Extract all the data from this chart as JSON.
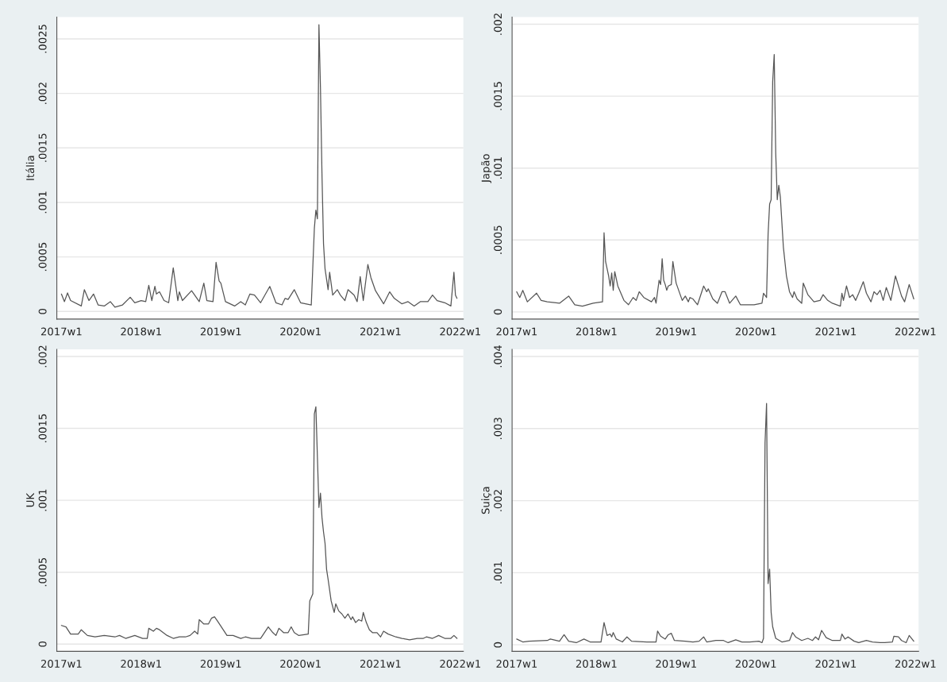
{
  "chart_data": [
    {
      "type": "line",
      "ylabel": "Itália",
      "grid": "y",
      "xlim": [
        "2016-12-11",
        "2022-01-15"
      ],
      "ylim": [
        -7e-05,
        0.0027
      ],
      "xticks": [
        {
          "value": "2017-01-01",
          "label": "2017w1"
        },
        {
          "value": "2018-01-01",
          "label": "2018w1"
        },
        {
          "value": "2019-01-01",
          "label": "2019w1"
        },
        {
          "value": "2020-01-01",
          "label": "2020w1"
        },
        {
          "value": "2021-01-01",
          "label": "2021w1"
        },
        {
          "value": "2022-01-01",
          "label": "2022w1"
        }
      ],
      "yticks": [
        0,
        {
          "value": 0.0005,
          "label": ".0005"
        },
        {
          "value": 0.001,
          "label": ".001"
        },
        {
          "value": 0.0015,
          "label": ".0015"
        },
        {
          "value": 0.002,
          "label": ".002"
        },
        {
          "value": 0.0025,
          "label": ".0025"
        }
      ],
      "series": [
        {
          "color": "#555555",
          "x": [
            "2017-01-01",
            "2017-01-15",
            "2017-01-29",
            "2017-02-12",
            "2017-04-02",
            "2017-04-16",
            "2017-05-07",
            "2017-05-28",
            "2017-06-18",
            "2017-07-16",
            "2017-08-13",
            "2017-09-03",
            "2017-10-08",
            "2017-11-12",
            "2017-12-03",
            "2018-01-01",
            "2018-01-22",
            "2018-02-05",
            "2018-02-19",
            "2018-03-05",
            "2018-03-12",
            "2018-03-26",
            "2018-04-16",
            "2018-05-07",
            "2018-05-28",
            "2018-06-18",
            "2018-06-25",
            "2018-07-09",
            "2018-08-20",
            "2018-09-24",
            "2018-10-15",
            "2018-10-29",
            "2018-11-26",
            "2018-12-10",
            "2018-12-24",
            "2019-01-01",
            "2019-01-22",
            "2019-03-05",
            "2019-04-02",
            "2019-04-23",
            "2019-05-14",
            "2019-06-04",
            "2019-07-02",
            "2019-08-13",
            "2019-09-10",
            "2019-10-08",
            "2019-10-22",
            "2019-11-05",
            "2019-12-03",
            "2020-01-01",
            "2020-02-19",
            "2020-03-04",
            "2020-03-11",
            "2020-03-18",
            "2020-03-25",
            "2020-04-01",
            "2020-04-08",
            "2020-04-15",
            "2020-04-22",
            "2020-05-06",
            "2020-05-13",
            "2020-05-27",
            "2020-06-17",
            "2020-07-01",
            "2020-07-22",
            "2020-08-05",
            "2020-09-02",
            "2020-09-16",
            "2020-09-30",
            "2020-10-14",
            "2020-11-04",
            "2020-11-18",
            "2020-12-09",
            "2021-01-15",
            "2021-02-12",
            "2021-03-05",
            "2021-04-09",
            "2021-05-07",
            "2021-06-04",
            "2021-07-02",
            "2021-08-06",
            "2021-08-27",
            "2021-09-17",
            "2021-10-22",
            "2021-11-19",
            "2021-12-03",
            "2021-12-10",
            "2021-12-17"
          ],
          "values": [
            0.00016,
            9e-05,
            0.00017,
            0.0001,
            5e-05,
            0.0002,
            0.0001,
            0.00016,
            6e-05,
            5e-05,
            9e-05,
            4e-05,
            6e-05,
            0.00013,
            8e-05,
            0.0001,
            9e-05,
            0.00024,
            0.0001,
            0.00023,
            0.00016,
            0.00018,
            0.0001,
            8e-05,
            0.0004,
            0.0001,
            0.00018,
            0.0001,
            0.00019,
            9e-05,
            0.00026,
            0.0001,
            9e-05,
            0.00045,
            0.00028,
            0.00026,
            9e-05,
            5e-05,
            9e-05,
            6e-05,
            0.00016,
            0.00015,
            8e-05,
            0.00023,
            8e-05,
            6e-05,
            0.00012,
            0.00011,
            0.0002,
            8e-05,
            6e-05,
            0.00076,
            0.00093,
            0.00085,
            0.00263,
            0.00205,
            0.00125,
            0.00062,
            0.00039,
            0.0002,
            0.00036,
            0.00015,
            0.0002,
            0.00015,
            0.0001,
            0.0002,
            0.00015,
            9e-05,
            0.00032,
            0.0001,
            0.00043,
            0.00031,
            0.00019,
            7e-05,
            0.00018,
            0.00012,
            7e-05,
            9e-05,
            5e-05,
            9e-05,
            9e-05,
            0.00015,
            0.0001,
            8e-05,
            5e-05,
            0.00036,
            0.00015,
            0.00012
          ]
        }
      ]
    },
    {
      "type": "line",
      "ylabel": "Japão",
      "grid": "y",
      "xlim": [
        "2016-12-11",
        "2022-01-15"
      ],
      "ylim": [
        -5e-05,
        0.00205
      ],
      "xticks": [
        {
          "value": "2017-01-01",
          "label": "2017w1"
        },
        {
          "value": "2018-01-01",
          "label": "2018w1"
        },
        {
          "value": "2019-01-01",
          "label": "2019w1"
        },
        {
          "value": "2020-01-01",
          "label": "2020w1"
        },
        {
          "value": "2021-01-01",
          "label": "2021w1"
        },
        {
          "value": "2022-01-01",
          "label": "2022w1"
        }
      ],
      "yticks": [
        0,
        {
          "value": 0.0005,
          "label": ".0005"
        },
        {
          "value": 0.001,
          "label": ".001"
        },
        {
          "value": 0.0015,
          "label": ".0015"
        },
        {
          "value": 0.002,
          "label": ".002"
        }
      ],
      "series": [
        {
          "color": "#555555",
          "x": [
            "2017-01-01",
            "2017-01-15",
            "2017-01-29",
            "2017-02-19",
            "2017-04-02",
            "2017-04-23",
            "2017-05-21",
            "2017-07-16",
            "2017-08-27",
            "2017-09-24",
            "2017-10-29",
            "2017-12-17",
            "2018-01-29",
            "2018-02-05",
            "2018-02-12",
            "2018-02-26",
            "2018-03-05",
            "2018-03-12",
            "2018-03-19",
            "2018-03-26",
            "2018-04-09",
            "2018-05-07",
            "2018-05-28",
            "2018-06-18",
            "2018-07-02",
            "2018-07-16",
            "2018-08-06",
            "2018-09-10",
            "2018-09-24",
            "2018-10-01",
            "2018-10-15",
            "2018-10-22",
            "2018-10-29",
            "2018-11-05",
            "2018-11-12",
            "2018-11-19",
            "2018-11-26",
            "2018-12-10",
            "2018-12-17",
            "2019-01-01",
            "2019-01-29",
            "2019-02-12",
            "2019-02-26",
            "2019-03-05",
            "2019-03-19",
            "2019-04-09",
            "2019-05-07",
            "2019-05-21",
            "2019-05-28",
            "2019-06-18",
            "2019-07-09",
            "2019-07-30",
            "2019-08-13",
            "2019-09-03",
            "2019-10-01",
            "2019-10-22",
            "2019-11-19",
            "2019-12-24",
            "2020-01-29",
            "2020-02-05",
            "2020-02-19",
            "2020-02-26",
            "2020-03-04",
            "2020-03-11",
            "2020-03-18",
            "2020-03-25",
            "2020-04-01",
            "2020-04-08",
            "2020-04-15",
            "2020-04-22",
            "2020-05-06",
            "2020-05-20",
            "2020-06-03",
            "2020-06-17",
            "2020-06-24",
            "2020-07-08",
            "2020-07-29",
            "2020-08-05",
            "2020-08-26",
            "2020-09-23",
            "2020-10-21",
            "2020-11-04",
            "2020-11-25",
            "2020-12-16",
            "2021-01-22",
            "2021-01-29",
            "2021-02-05",
            "2021-02-19",
            "2021-03-05",
            "2021-03-19",
            "2021-04-02",
            "2021-04-16",
            "2021-05-07",
            "2021-05-21",
            "2021-06-11",
            "2021-06-25",
            "2021-07-09",
            "2021-07-23",
            "2021-08-06",
            "2021-08-20",
            "2021-09-10",
            "2021-10-01",
            "2021-10-29",
            "2021-11-12",
            "2021-12-03",
            "2021-12-24"
          ],
          "values": [
            0.00014,
            0.0001,
            0.00015,
            7e-05,
            0.00013,
            8e-05,
            7e-05,
            6e-05,
            0.00011,
            5e-05,
            4e-05,
            6e-05,
            7e-05,
            0.00055,
            0.00035,
            0.00025,
            0.00018,
            0.00027,
            0.00015,
            0.00028,
            0.00018,
            8e-05,
            5e-05,
            0.0001,
            8e-05,
            0.00014,
            0.0001,
            7e-05,
            0.0001,
            6e-05,
            0.00022,
            0.00019,
            0.00037,
            0.00022,
            0.00019,
            0.00015,
            0.00018,
            0.00019,
            0.00035,
            0.0002,
            8e-05,
            0.00011,
            7e-05,
            0.0001,
            9e-05,
            5e-05,
            0.00018,
            0.00014,
            0.00016,
            9e-05,
            6e-05,
            0.00014,
            0.00014,
            6e-05,
            0.00011,
            5e-05,
            5e-05,
            5e-05,
            6e-05,
            0.00013,
            0.0001,
            0.00054,
            0.00075,
            0.00078,
            0.0016,
            0.00179,
            0.0011,
            0.00078,
            0.00088,
            0.0008,
            0.00045,
            0.00025,
            0.00014,
            0.0001,
            0.00014,
            9e-05,
            6e-05,
            0.0002,
            0.00012,
            7e-05,
            8e-05,
            0.00012,
            8e-05,
            6e-05,
            4e-05,
            0.00013,
            8e-05,
            0.00018,
            0.0001,
            0.00012,
            8e-05,
            0.00013,
            0.00021,
            0.00013,
            7e-05,
            0.00014,
            0.00012,
            0.00015,
            8e-05,
            0.00017,
            8e-05,
            0.00025,
            0.00011,
            7e-05,
            0.00019,
            9e-05
          ]
        }
      ]
    },
    {
      "type": "line",
      "ylabel": "UK",
      "grid": "y",
      "xlim": [
        "2016-12-11",
        "2022-01-15"
      ],
      "ylim": [
        -5e-05,
        0.00205
      ],
      "xticks": [
        {
          "value": "2017-01-01",
          "label": "2017w1"
        },
        {
          "value": "2018-01-01",
          "label": "2018w1"
        },
        {
          "value": "2019-01-01",
          "label": "2019w1"
        },
        {
          "value": "2020-01-01",
          "label": "2020w1"
        },
        {
          "value": "2021-01-01",
          "label": "2021w1"
        },
        {
          "value": "2022-01-01",
          "label": "2022w1"
        }
      ],
      "yticks": [
        0,
        {
          "value": 0.0005,
          "label": ".0005"
        },
        {
          "value": 0.001,
          "label": ".001"
        },
        {
          "value": 0.0015,
          "label": ".0015"
        },
        {
          "value": 0.002,
          "label": ".002"
        }
      ],
      "series": [
        {
          "color": "#555555",
          "x": [
            "2017-01-01",
            "2017-01-22",
            "2017-02-12",
            "2017-03-19",
            "2017-04-02",
            "2017-04-30",
            "2017-06-04",
            "2017-07-16",
            "2017-09-03",
            "2017-09-24",
            "2017-10-22",
            "2017-12-03",
            "2018-01-08",
            "2018-01-29",
            "2018-02-05",
            "2018-02-26",
            "2018-03-12",
            "2018-03-26",
            "2018-04-30",
            "2018-05-28",
            "2018-06-25",
            "2018-07-23",
            "2018-08-13",
            "2018-09-03",
            "2018-09-17",
            "2018-09-24",
            "2018-10-15",
            "2018-11-05",
            "2018-11-19",
            "2018-12-03",
            "2018-12-17",
            "2019-01-29",
            "2019-02-26",
            "2019-04-02",
            "2019-04-23",
            "2019-05-21",
            "2019-07-02",
            "2019-08-06",
            "2019-08-27",
            "2019-09-10",
            "2019-09-24",
            "2019-10-15",
            "2019-11-05",
            "2019-11-19",
            "2019-12-03",
            "2019-12-24",
            "2020-02-05",
            "2020-02-12",
            "2020-02-26",
            "2020-03-04",
            "2020-03-11",
            "2020-03-18",
            "2020-03-25",
            "2020-04-01",
            "2020-04-08",
            "2020-04-15",
            "2020-04-22",
            "2020-04-29",
            "2020-05-06",
            "2020-05-20",
            "2020-06-03",
            "2020-06-10",
            "2020-06-24",
            "2020-07-08",
            "2020-07-22",
            "2020-08-05",
            "2020-08-19",
            "2020-08-26",
            "2020-09-09",
            "2020-09-23",
            "2020-10-07",
            "2020-10-14",
            "2020-10-28",
            "2020-11-11",
            "2020-11-25",
            "2020-12-16",
            "2021-01-01",
            "2021-01-15",
            "2021-02-05",
            "2021-03-12",
            "2021-04-09",
            "2021-05-14",
            "2021-06-18",
            "2021-07-16",
            "2021-07-30",
            "2021-08-27",
            "2021-09-24",
            "2021-10-22",
            "2021-11-19",
            "2021-12-03",
            "2021-12-17"
          ],
          "values": [
            0.00013,
            0.00012,
            7e-05,
            7e-05,
            0.0001,
            6e-05,
            5e-05,
            6e-05,
            5e-05,
            6e-05,
            4e-05,
            6e-05,
            4e-05,
            4e-05,
            0.00011,
            9e-05,
            0.00011,
            0.0001,
            6e-05,
            4e-05,
            5e-05,
            5e-05,
            6e-05,
            9e-05,
            7e-05,
            0.00017,
            0.00014,
            0.00014,
            0.00018,
            0.00019,
            0.00016,
            6e-05,
            6e-05,
            4e-05,
            5e-05,
            4e-05,
            4e-05,
            0.00012,
            8e-05,
            6e-05,
            0.00011,
            8e-05,
            8e-05,
            0.00012,
            8e-05,
            6e-05,
            7e-05,
            0.0003,
            0.00035,
            0.0016,
            0.00165,
            0.0013,
            0.00095,
            0.00105,
            0.00088,
            0.00078,
            0.0007,
            0.00052,
            0.00045,
            0.0003,
            0.00022,
            0.00028,
            0.00023,
            0.00021,
            0.00018,
            0.00021,
            0.00017,
            0.00019,
            0.00015,
            0.00017,
            0.00016,
            0.00022,
            0.00015,
            0.0001,
            8e-05,
            8e-05,
            5e-05,
            9e-05,
            7e-05,
            5e-05,
            4e-05,
            3e-05,
            4e-05,
            4e-05,
            5e-05,
            4e-05,
            6e-05,
            4e-05,
            4e-05,
            6e-05,
            4e-05
          ]
        }
      ]
    },
    {
      "type": "line",
      "ylabel": "Suiça",
      "grid": "y",
      "xlim": [
        "2016-12-11",
        "2022-01-15"
      ],
      "ylim": [
        -9e-05,
        0.0041
      ],
      "xticks": [
        {
          "value": "2017-01-01",
          "label": "2017w1"
        },
        {
          "value": "2018-01-01",
          "label": "2018w1"
        },
        {
          "value": "2019-01-01",
          "label": "2019w1"
        },
        {
          "value": "2020-01-01",
          "label": "2020w1"
        },
        {
          "value": "2021-01-01",
          "label": "2021w1"
        },
        {
          "value": "2022-01-01",
          "label": "2022w1"
        }
      ],
      "yticks": [
        0,
        {
          "value": 0.001,
          "label": ".001"
        },
        {
          "value": 0.002,
          "label": ".002"
        },
        {
          "value": 0.003,
          "label": ".003"
        },
        {
          "value": 0.004,
          "label": ".004"
        }
      ],
      "series": [
        {
          "color": "#555555",
          "x": [
            "2017-01-01",
            "2017-01-29",
            "2017-02-26",
            "2017-05-21",
            "2017-06-04",
            "2017-07-16",
            "2017-08-06",
            "2017-08-27",
            "2017-10-01",
            "2017-11-05",
            "2017-12-03",
            "2018-01-22",
            "2018-02-05",
            "2018-02-19",
            "2018-03-05",
            "2018-03-12",
            "2018-03-19",
            "2018-04-02",
            "2018-04-30",
            "2018-05-21",
            "2018-06-11",
            "2018-08-20",
            "2018-10-01",
            "2018-10-08",
            "2018-10-22",
            "2018-11-12",
            "2018-11-26",
            "2018-12-10",
            "2018-12-24",
            "2019-02-12",
            "2019-03-19",
            "2019-04-16",
            "2019-05-07",
            "2019-05-21",
            "2019-07-02",
            "2019-08-06",
            "2019-08-27",
            "2019-10-01",
            "2019-10-29",
            "2019-12-03",
            "2020-01-15",
            "2020-01-29",
            "2020-02-05",
            "2020-02-12",
            "2020-02-19",
            "2020-02-26",
            "2020-03-04",
            "2020-03-11",
            "2020-03-18",
            "2020-04-01",
            "2020-04-29",
            "2020-06-03",
            "2020-06-17",
            "2020-07-01",
            "2020-07-29",
            "2020-08-26",
            "2020-09-16",
            "2020-09-30",
            "2020-10-14",
            "2020-10-28",
            "2020-11-18",
            "2020-12-16",
            "2021-01-22",
            "2021-01-29",
            "2021-02-12",
            "2021-02-26",
            "2021-03-26",
            "2021-04-16",
            "2021-05-21",
            "2021-06-18",
            "2021-07-23",
            "2021-08-13",
            "2021-09-17",
            "2021-09-24",
            "2021-10-15",
            "2021-10-29",
            "2021-11-19",
            "2021-12-03",
            "2021-12-24"
          ],
          "values": [
            8e-05,
            4e-05,
            5e-05,
            6e-05,
            8e-05,
            5e-05,
            0.00014,
            5e-05,
            3e-05,
            8e-05,
            4e-05,
            4e-05,
            0.00031,
            0.00013,
            0.00015,
            0.00011,
            0.00017,
            8e-05,
            4e-05,
            0.00011,
            5e-05,
            4e-05,
            4e-05,
            0.00019,
            0.00012,
            8e-05,
            0.00014,
            0.00016,
            6e-05,
            5e-05,
            4e-05,
            5e-05,
            0.00011,
            4e-05,
            6e-05,
            6e-05,
            3e-05,
            7e-05,
            4e-05,
            4e-05,
            5e-05,
            3e-05,
            9e-05,
            0.0028,
            0.00335,
            0.00085,
            0.00105,
            0.00045,
            0.00025,
            9e-05,
            4e-05,
            6e-05,
            0.00017,
            0.00011,
            6e-05,
            9e-05,
            6e-05,
            0.00011,
            7e-05,
            0.0002,
            0.0001,
            6e-05,
            6e-05,
            0.00015,
            8e-05,
            0.00011,
            5e-05,
            3e-05,
            6e-05,
            4e-05,
            3e-05,
            3e-05,
            4e-05,
            0.00012,
            0.00011,
            6e-05,
            3e-05,
            0.00013,
            5e-05
          ]
        }
      ]
    }
  ]
}
